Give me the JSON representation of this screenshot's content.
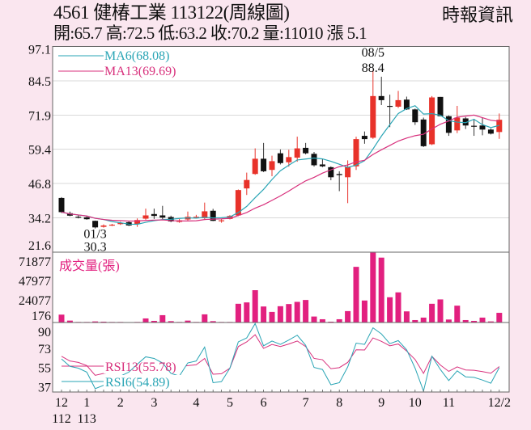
{
  "header": {
    "title": "4561  健椿工業 113122(周線圖)",
    "quote": "開:65.7 高:72.5 低:63.2 收:70.2 量:11010 漲 5.1",
    "source": "時報資訊"
  },
  "colors": {
    "up": "#e8322a",
    "down": "#111111",
    "ma6": "#2aa5b5",
    "ma13": "#d8307c",
    "volume": "#e2207f",
    "rsi13": "#d8307c",
    "rsi6": "#2aa5b5",
    "background": "#fae6ef"
  },
  "chart_data": [
    {
      "type": "candlestick",
      "ylim": [
        21.6,
        97.1
      ],
      "y_ticks": [
        "97.1",
        "84.5",
        "71.9",
        "59.4",
        "46.8",
        "34.2",
        "21.6"
      ],
      "grid": true,
      "legend": [
        {
          "name": "MA6(68.08)",
          "period": 6
        },
        {
          "name": "MA13(69.69)",
          "period": 13
        }
      ],
      "annotations": [
        {
          "index": 37,
          "lines": [
            "08/5",
            "88.4"
          ],
          "position": "above"
        },
        {
          "index": 4,
          "lines": [
            "01/3",
            "30.3"
          ],
          "position": "below"
        }
      ],
      "ohlc": [
        [
          41.5,
          41.8,
          36.0,
          36.3
        ],
        [
          35.9,
          36.5,
          34.8,
          35.0
        ],
        [
          34.6,
          35.3,
          34.0,
          34.5
        ],
        [
          34.4,
          34.8,
          33.5,
          33.7
        ],
        [
          33.1,
          33.2,
          30.3,
          30.7
        ],
        [
          30.9,
          31.8,
          30.6,
          31.4
        ],
        [
          31.5,
          32.0,
          31.2,
          31.7
        ],
        [
          31.9,
          32.8,
          31.6,
          32.4
        ],
        [
          32.6,
          33.0,
          31.2,
          31.4
        ],
        [
          31.9,
          34.0,
          30.9,
          33.4
        ],
        [
          33.9,
          37.6,
          33.5,
          35.1
        ],
        [
          35.6,
          37.6,
          33.8,
          34.9
        ],
        [
          35.1,
          38.6,
          33.6,
          34.3
        ],
        [
          34.5,
          35.0,
          32.6,
          32.9
        ],
        [
          32.7,
          33.8,
          32.4,
          33.3
        ],
        [
          33.6,
          36.5,
          33.2,
          34.6
        ],
        [
          34.5,
          35.3,
          34.0,
          34.6
        ],
        [
          34.1,
          39.8,
          33.6,
          36.6
        ],
        [
          36.8,
          37.5,
          33.0,
          33.1
        ],
        [
          33.1,
          33.8,
          32.4,
          33.3
        ],
        [
          33.8,
          35.2,
          33.6,
          34.9
        ],
        [
          35.1,
          44.6,
          34.8,
          44.4
        ],
        [
          45.0,
          50.8,
          42.6,
          48.1
        ],
        [
          50.3,
          59.7,
          50.0,
          55.9
        ],
        [
          55.9,
          61.7,
          51.0,
          51.3
        ],
        [
          51.8,
          57.0,
          49.5,
          55.0
        ],
        [
          57.9,
          59.3,
          53.8,
          54.3
        ],
        [
          54.6,
          59.2,
          53.0,
          56.5
        ],
        [
          56.3,
          64.0,
          54.8,
          59.7
        ],
        [
          59.9,
          61.7,
          57.5,
          57.9
        ],
        [
          57.7,
          58.4,
          53.0,
          53.5
        ],
        [
          53.8,
          55.8,
          52.8,
          53.1
        ],
        [
          52.8,
          53.1,
          48.0,
          49.1
        ],
        [
          50.3,
          51.3,
          44.0,
          49.9
        ],
        [
          49.1,
          55.3,
          39.6,
          52.8
        ],
        [
          53.1,
          64.0,
          51.8,
          63.1
        ],
        [
          64.3,
          65.9,
          61.4,
          63.1
        ],
        [
          63.6,
          88.4,
          63.2,
          78.9
        ],
        [
          78.9,
          86.0,
          75.6,
          77.4
        ],
        [
          75.3,
          79.4,
          67.5,
          75.1
        ],
        [
          75.0,
          80.8,
          74.5,
          77.4
        ],
        [
          77.6,
          78.7,
          73.8,
          74.0
        ],
        [
          74.0,
          74.3,
          68.3,
          69.3
        ],
        [
          70.3,
          71.0,
          60.2,
          60.5
        ],
        [
          61.2,
          78.9,
          60.9,
          78.4
        ],
        [
          78.6,
          78.6,
          71.5,
          71.5
        ],
        [
          71.5,
          71.8,
          64.3,
          65.4
        ],
        [
          66.3,
          75.3,
          65.3,
          71.0
        ],
        [
          70.7,
          71.2,
          66.8,
          68.1
        ],
        [
          68.0,
          70.5,
          64.3,
          67.8
        ],
        [
          68.1,
          71.1,
          64.5,
          66.6
        ],
        [
          66.6,
          67.0,
          64.8,
          65.1
        ],
        [
          65.7,
          72.5,
          63.2,
          70.2
        ]
      ]
    },
    {
      "type": "bar",
      "title": "成交量(張)",
      "ylim": [
        0,
        80000
      ],
      "y_ticks": [
        "71877",
        "47977",
        "24077",
        "176"
      ],
      "values": [
        8960,
        2160,
        620,
        620,
        1240,
        930,
        620,
        620,
        150,
        620,
        4630,
        1850,
        8340,
        1540,
        620,
        2160,
        620,
        9270,
        1540,
        620,
        620,
        21310,
        22860,
        36760,
        18220,
        12050,
        18530,
        21000,
        23480,
        25640,
        6800,
        3710,
        930,
        3710,
        12970,
        63320,
        25020,
        79500,
        73820,
        28730,
        34290,
        12660,
        2780,
        5560,
        21310,
        26260,
        3400,
        19150,
        2780,
        1850,
        5560,
        1240,
        11010
      ]
    },
    {
      "type": "line",
      "ylim": [
        32,
        97
      ],
      "y_ticks": [
        "90",
        "73",
        "55",
        "37"
      ],
      "x_labels": [
        {
          "index": 0,
          "lines": [
            "12",
            "112"
          ]
        },
        {
          "index": 3,
          "lines": [
            "1",
            "113"
          ]
        },
        {
          "index": 7,
          "lines": [
            "2"
          ]
        },
        {
          "index": 11,
          "lines": [
            "3"
          ]
        },
        {
          "index": 16,
          "lines": [
            "4"
          ]
        },
        {
          "index": 20,
          "lines": [
            "5"
          ]
        },
        {
          "index": 24,
          "lines": [
            "6"
          ]
        },
        {
          "index": 29,
          "lines": [
            "7"
          ]
        },
        {
          "index": 33,
          "lines": [
            "8"
          ]
        },
        {
          "index": 38,
          "lines": [
            "9"
          ]
        },
        {
          "index": 42,
          "lines": [
            "10"
          ]
        },
        {
          "index": 46,
          "lines": [
            "11"
          ]
        },
        {
          "index": 52,
          "lines": [
            "12/2"
          ]
        }
      ],
      "series": [
        {
          "name": "RSI13(55.78)",
          "values": [
            65.4,
            61,
            59.7,
            56.7,
            47.6,
            49.4,
            50.6,
            51.8,
            54.3,
            56.7,
            60,
            59.7,
            57.5,
            54.3,
            55.5,
            56.7,
            57.5,
            63.4,
            48.6,
            49.1,
            54.3,
            74.5,
            78.9,
            85.6,
            72.8,
            76.5,
            74.5,
            76.9,
            79.7,
            74.5,
            63.4,
            62.2,
            53.8,
            54.8,
            59.7,
            71.5,
            71.3,
            82.6,
            79.4,
            75.2,
            76.9,
            70.3,
            62.4,
            49.4,
            65.4,
            57.2,
            51.3,
            55.5,
            52.6,
            52.3,
            51.1,
            49.6,
            55.78
          ]
        },
        {
          "name": "RSI6(54.89)",
          "values": [
            62.9,
            56,
            54.3,
            50.6,
            35.1,
            38.3,
            42,
            46.9,
            50.6,
            58,
            64.9,
            63.4,
            59.2,
            49.4,
            46.9,
            59.2,
            61,
            74,
            40.7,
            41.7,
            54.3,
            78.9,
            82.6,
            96,
            75.2,
            79.7,
            76.5,
            80.6,
            85.1,
            75.7,
            55,
            53.1,
            38.8,
            40.7,
            55.5,
            77.7,
            76.5,
            92,
            86.3,
            77.2,
            80.1,
            71.5,
            54.3,
            32.9,
            65.4,
            53.1,
            42.7,
            51.8,
            46.2,
            45.7,
            43.2,
            40.2,
            54.89
          ]
        }
      ]
    }
  ]
}
